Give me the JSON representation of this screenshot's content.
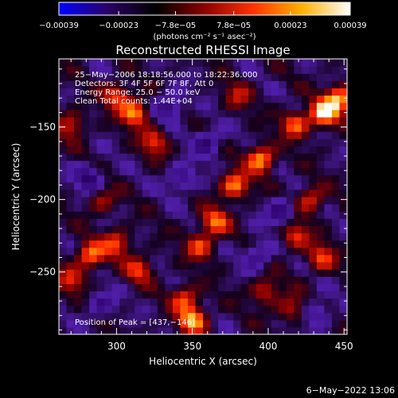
{
  "chart_data": {
    "type": "heatmap",
    "title": "Reconstructed RHESSI Image",
    "xlabel": "Heliocentric X (arcsec)",
    "ylabel": "Heliocentric Y (arcsec)",
    "xlim": [
      262,
      452
    ],
    "ylim": [
      -293,
      -103
    ],
    "x_ticks": [
      300,
      350,
      400,
      450
    ],
    "x_tick_labels": [
      "300",
      "350",
      "400",
      "450"
    ],
    "y_ticks": [
      -150,
      -200,
      -250
    ],
    "y_tick_labels": [
      "−150",
      "−200",
      "−250"
    ],
    "colorbar": {
      "range": [
        -0.00039,
        0.00039
      ],
      "ticks": [
        -0.00039,
        -0.00023,
        -7.8e-05,
        7.8e-05,
        0.00023,
        0.00039
      ],
      "tick_labels": [
        "−0.00039",
        "−0.00023",
        "−7.8e−05",
        "7.8e−05",
        "0.00023",
        "0.00039"
      ],
      "unit_label": "(photons cm⁻² s⁻¹ asec⁻²)",
      "colors": [
        "#0000ff",
        "#2a0066",
        "#000000",
        "#8b0000",
        "#ff3300",
        "#ffb000",
        "#ffffff"
      ]
    },
    "annotations": [
      "25−May−2006 18:18:56.000 to 18:22:36.000",
      "Detectors: 3F 4F 5F 6F 7F 8F, Att 0",
      "Energy Range: 25.0 − 50.0 keV",
      "Clean     Total counts: 1.44E+04"
    ],
    "peak_label": "Position of Peak = [437,−146]",
    "peak_position": [
      437,
      -146
    ],
    "hotspots": [
      {
        "x": 437,
        "y": -140,
        "v": 1.0
      },
      {
        "x": 447,
        "y": -130,
        "v": 0.85
      },
      {
        "x": 418,
        "y": -148,
        "v": 0.7
      },
      {
        "x": 395,
        "y": -172,
        "v": 0.85
      },
      {
        "x": 378,
        "y": -190,
        "v": 0.8
      },
      {
        "x": 365,
        "y": -215,
        "v": 0.7
      },
      {
        "x": 355,
        "y": -232,
        "v": 0.6
      },
      {
        "x": 428,
        "y": -200,
        "v": 0.55
      },
      {
        "x": 435,
        "y": -240,
        "v": 0.6
      },
      {
        "x": 418,
        "y": -225,
        "v": 0.55
      },
      {
        "x": 312,
        "y": -140,
        "v": 0.8
      },
      {
        "x": 300,
        "y": -128,
        "v": 0.6
      },
      {
        "x": 325,
        "y": -160,
        "v": 0.55
      },
      {
        "x": 270,
        "y": -148,
        "v": 0.5
      },
      {
        "x": 283,
        "y": -238,
        "v": 0.75
      },
      {
        "x": 300,
        "y": -230,
        "v": 0.6
      },
      {
        "x": 315,
        "y": -248,
        "v": 0.55
      },
      {
        "x": 350,
        "y": -283,
        "v": 0.85
      },
      {
        "x": 345,
        "y": -268,
        "v": 0.6
      },
      {
        "x": 398,
        "y": -263,
        "v": 0.5
      },
      {
        "x": 415,
        "y": -275,
        "v": 0.45
      },
      {
        "x": 290,
        "y": -200,
        "v": 0.4
      },
      {
        "x": 380,
        "y": -128,
        "v": 0.4
      },
      {
        "x": 270,
        "y": -255,
        "v": 0.5
      }
    ],
    "coldspots": [
      {
        "x": 335,
        "y": -135,
        "v": -0.55
      },
      {
        "x": 360,
        "y": -160,
        "v": -0.5
      },
      {
        "x": 282,
        "y": -185,
        "v": -0.55
      },
      {
        "x": 343,
        "y": -185,
        "v": -0.45
      },
      {
        "x": 408,
        "y": -208,
        "v": -0.5
      },
      {
        "x": 393,
        "y": -238,
        "v": -0.45
      },
      {
        "x": 290,
        "y": -272,
        "v": -0.4
      },
      {
        "x": 432,
        "y": -278,
        "v": -0.4
      }
    ]
  },
  "footer": {
    "date": "6−May−2022 13:06"
  }
}
